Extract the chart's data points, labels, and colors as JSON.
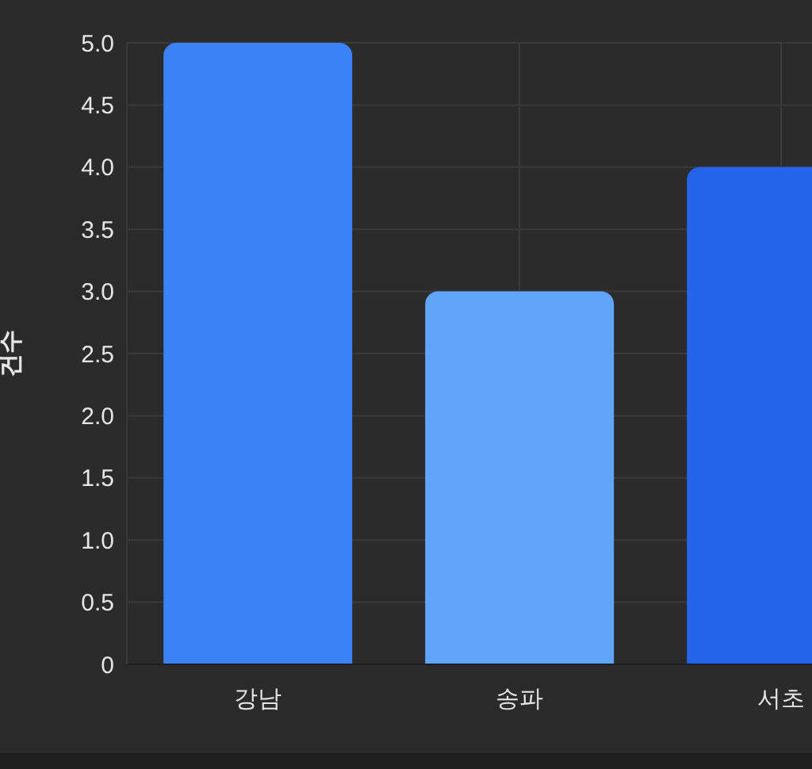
{
  "chart_data": {
    "type": "bar",
    "ylabel": "건수",
    "categories": [
      "강남",
      "송파",
      "서초"
    ],
    "values": [
      5,
      3,
      4
    ],
    "colors": [
      "#3b82f6",
      "#60a5fa",
      "#2563eb"
    ],
    "ylim": [
      0,
      5
    ],
    "yticks": [
      {
        "value": 0,
        "label": "0"
      },
      {
        "value": 0.5,
        "label": "0.5"
      },
      {
        "value": 1,
        "label": "1.0"
      },
      {
        "value": 1.5,
        "label": "1.5"
      },
      {
        "value": 2,
        "label": "2.0"
      },
      {
        "value": 2.5,
        "label": "2.5"
      },
      {
        "value": 3,
        "label": "3.0"
      },
      {
        "value": 3.5,
        "label": "3.5"
      },
      {
        "value": 4,
        "label": "4.0"
      },
      {
        "value": 4.5,
        "label": "4.5"
      },
      {
        "value": 5,
        "label": "5.0"
      }
    ],
    "grid": true
  }
}
